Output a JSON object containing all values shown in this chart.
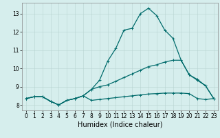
{
  "title": "",
  "xlabel": "Humidex (Indice chaleur)",
  "bg_color": "#d6eeed",
  "grid_color": "#b8d4d2",
  "line_color": "#006b6b",
  "xlim": [
    -0.5,
    23.5
  ],
  "ylim": [
    7.7,
    13.6
  ],
  "xticks": [
    0,
    1,
    2,
    3,
    4,
    5,
    6,
    7,
    8,
    9,
    10,
    11,
    12,
    13,
    14,
    15,
    16,
    17,
    18,
    19,
    20,
    21,
    22,
    23
  ],
  "yticks": [
    8,
    9,
    10,
    11,
    12,
    13
  ],
  "line_max": {
    "x": [
      0,
      1,
      2,
      3,
      4,
      5,
      6,
      7,
      8,
      9,
      10,
      11,
      12,
      13,
      14,
      15,
      16,
      17,
      18,
      19,
      20,
      21,
      22,
      23
    ],
    "y": [
      8.35,
      8.45,
      8.45,
      8.2,
      8.0,
      8.25,
      8.35,
      8.5,
      8.85,
      9.35,
      10.4,
      11.1,
      12.1,
      12.2,
      13.0,
      13.3,
      12.9,
      12.1,
      11.65,
      10.45,
      9.65,
      9.4,
      9.05,
      8.35
    ]
  },
  "line_mid": {
    "x": [
      0,
      1,
      2,
      3,
      4,
      5,
      6,
      7,
      8,
      9,
      10,
      11,
      12,
      13,
      14,
      15,
      16,
      17,
      18,
      19,
      20,
      21,
      22,
      23
    ],
    "y": [
      8.35,
      8.45,
      8.45,
      8.2,
      8.0,
      8.25,
      8.35,
      8.5,
      8.85,
      9.0,
      9.1,
      9.3,
      9.5,
      9.7,
      9.9,
      10.1,
      10.2,
      10.35,
      10.45,
      10.45,
      9.65,
      9.35,
      9.05,
      8.35
    ]
  },
  "line_min": {
    "x": [
      0,
      1,
      2,
      3,
      4,
      5,
      6,
      7,
      8,
      9,
      10,
      11,
      12,
      13,
      14,
      15,
      16,
      17,
      18,
      19,
      20,
      21,
      22,
      23
    ],
    "y": [
      8.35,
      8.45,
      8.45,
      8.2,
      8.0,
      8.25,
      8.35,
      8.5,
      8.25,
      8.3,
      8.35,
      8.4,
      8.45,
      8.5,
      8.55,
      8.6,
      8.62,
      8.65,
      8.65,
      8.65,
      8.62,
      8.35,
      8.3,
      8.35
    ]
  },
  "xlabel_fontsize": 7,
  "tick_fontsize": 5.5,
  "linewidth": 0.9,
  "markersize": 2.5
}
